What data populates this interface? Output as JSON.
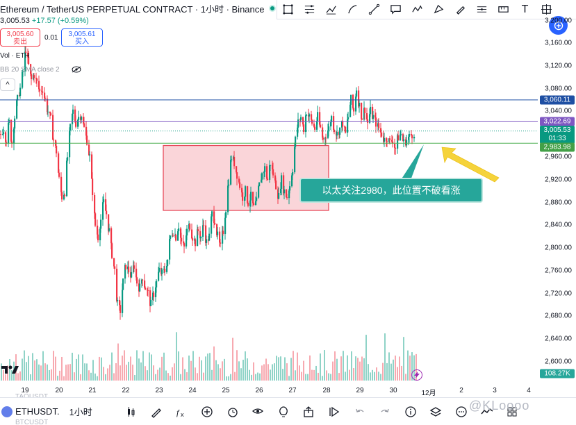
{
  "header": {
    "title": "Ethereum / TetherUS PERPETUAL CONTRACT · 1小时 · Binance",
    "last_price": "3,005.53",
    "change": "+17.57 (+0.59%)",
    "sell_price": "3,005.60",
    "sell_label": "卖出",
    "spread": "0.01",
    "buy_price": "3,005.61",
    "buy_label": "买入",
    "vol_label": "Vol · ETH",
    "bb_label": "BB 20 SMA close 2",
    "collapse": "^"
  },
  "toolbar": {
    "icons": [
      "rectangle-tool-icon",
      "fib-tool-icon",
      "path-tool-icon",
      "brush-icon",
      "trendline-icon",
      "callout-icon",
      "pattern-icon",
      "projection-icon",
      "pen-icon",
      "horizontal-line-icon",
      "ruler-icon",
      "text-icon",
      "crosshair-icon"
    ],
    "text_tool": "T"
  },
  "price_axis": {
    "ticks": [
      "3,160.00",
      "3,120.00",
      "3,080.00",
      "3,040.00",
      "3,000.00",
      "2,960.00",
      "2,920.00",
      "2,880.00",
      "2,840.00",
      "2,800.00",
      "2,760.00",
      "2,720.00",
      "2,680.00",
      "2,640.00",
      "2,600.00"
    ],
    "top_partial": "3,200.00",
    "tag_blue": "3,060.11",
    "tag_purple": "3,022.69",
    "tag_last": "3,005.53",
    "tag_countdown": "01:33",
    "tag_green": "2,983.98",
    "tag_volume": "108.27K"
  },
  "time_axis": {
    "labels": [
      "19",
      "20",
      "21",
      "22",
      "23",
      "24",
      "25",
      "26",
      "27",
      "28",
      "29",
      "30",
      "12月",
      "2",
      "3",
      "4"
    ]
  },
  "annotation": {
    "text": "以太关注2980，此位置不破看涨"
  },
  "colors": {
    "up": "#089981",
    "down": "#f23645",
    "zone_fill": "#f8c7cc",
    "zone_border": "#e84a5a",
    "line_blue": "#1e4fa3",
    "line_purple": "#7e57c2",
    "line_green": "#4caf50",
    "callout": "#26a69a",
    "arrow": "#f5d33b"
  },
  "bottom": {
    "symbol": "ETHUSDT.",
    "interval": "1小时",
    "ghost_top": "TAOUSDT",
    "ghost_bottom": "BTCUSDT",
    "icons": [
      "candles-icon",
      "draw-icon",
      "fx-icon",
      "add-icon",
      "alert-icon",
      "compare-icon",
      "idea-icon",
      "share-icon",
      "replay-icon",
      "undo-icon",
      "redo-icon",
      "info-icon",
      "layers-icon",
      "more-icon",
      "trend-icon",
      "grid-icon"
    ],
    "watermark": "@KLoooo"
  },
  "chart_data": {
    "type": "candlestick",
    "price_range": [
      2580,
      3210
    ],
    "close_path": [
      [
        0,
        3000
      ],
      [
        4,
        3010
      ],
      [
        8,
        2990
      ],
      [
        12,
        3020
      ],
      [
        16,
        2985
      ],
      [
        20,
        3030
      ],
      [
        24,
        3060
      ],
      [
        28,
        3080
      ],
      [
        32,
        3110
      ],
      [
        36,
        3150
      ],
      [
        40,
        3120
      ],
      [
        44,
        3095
      ],
      [
        48,
        3105
      ],
      [
        52,
        3090
      ],
      [
        56,
        3075
      ],
      [
        60,
        3080
      ],
      [
        64,
        3060
      ],
      [
        68,
        3040
      ],
      [
        72,
        3025
      ],
      [
        76,
        2990
      ],
      [
        80,
        2970
      ],
      [
        84,
        2920
      ],
      [
        88,
        2890
      ],
      [
        92,
        2900
      ],
      [
        96,
        2960
      ],
      [
        100,
        3010
      ],
      [
        104,
        3040
      ],
      [
        108,
        3020
      ],
      [
        112,
        3030
      ],
      [
        116,
        3035
      ],
      [
        120,
        3010
      ],
      [
        124,
        2990
      ],
      [
        128,
        2960
      ],
      [
        132,
        2900
      ],
      [
        136,
        2840
      ],
      [
        140,
        2820
      ],
      [
        144,
        2850
      ],
      [
        148,
        2880
      ],
      [
        152,
        2860
      ],
      [
        156,
        2830
      ],
      [
        160,
        2790
      ],
      [
        164,
        2760
      ],
      [
        168,
        2700
      ],
      [
        172,
        2690
      ],
      [
        176,
        2740
      ],
      [
        180,
        2770
      ],
      [
        184,
        2760
      ],
      [
        188,
        2750
      ],
      [
        192,
        2770
      ],
      [
        196,
        2740
      ],
      [
        200,
        2730
      ],
      [
        204,
        2750
      ],
      [
        208,
        2730
      ],
      [
        212,
        2720
      ],
      [
        216,
        2700
      ],
      [
        220,
        2720
      ],
      [
        224,
        2740
      ],
      [
        228,
        2760
      ],
      [
        232,
        2755
      ],
      [
        236,
        2760
      ],
      [
        240,
        2780
      ],
      [
        244,
        2820
      ],
      [
        248,
        2830
      ],
      [
        252,
        2820
      ],
      [
        256,
        2840
      ],
      [
        260,
        2810
      ],
      [
        264,
        2800
      ],
      [
        268,
        2830
      ],
      [
        272,
        2840
      ],
      [
        276,
        2820
      ],
      [
        280,
        2810
      ],
      [
        284,
        2830
      ],
      [
        288,
        2820
      ],
      [
        292,
        2840
      ],
      [
        296,
        2810
      ],
      [
        300,
        2820
      ],
      [
        304,
        2860
      ],
      [
        308,
        2850
      ],
      [
        312,
        2820
      ],
      [
        316,
        2800
      ],
      [
        320,
        2830
      ],
      [
        324,
        2870
      ],
      [
        328,
        2920
      ],
      [
        332,
        2960
      ],
      [
        336,
        2950
      ],
      [
        340,
        2930
      ],
      [
        344,
        2910
      ],
      [
        348,
        2890
      ],
      [
        352,
        2900
      ],
      [
        356,
        2880
      ],
      [
        360,
        2890
      ],
      [
        364,
        2870
      ],
      [
        368,
        2880
      ],
      [
        372,
        2910
      ],
      [
        376,
        2930
      ],
      [
        380,
        2940
      ],
      [
        384,
        2920
      ],
      [
        388,
        2950
      ],
      [
        392,
        2930
      ],
      [
        396,
        2910
      ],
      [
        400,
        2890
      ],
      [
        404,
        2920
      ],
      [
        408,
        2900
      ],
      [
        412,
        2890
      ],
      [
        416,
        2910
      ],
      [
        420,
        2940
      ],
      [
        424,
        2990
      ],
      [
        428,
        3020
      ],
      [
        432,
        3030
      ],
      [
        436,
        3010
      ],
      [
        440,
        3040
      ],
      [
        444,
        3030
      ],
      [
        448,
        3020
      ],
      [
        452,
        3010
      ],
      [
        456,
        3030
      ],
      [
        460,
        3010
      ],
      [
        464,
        2990
      ],
      [
        468,
        3000
      ],
      [
        472,
        3010
      ],
      [
        476,
        3030
      ],
      [
        480,
        3010
      ],
      [
        484,
        3000
      ],
      [
        488,
        3010
      ],
      [
        492,
        3020
      ],
      [
        496,
        3000
      ],
      [
        500,
        3030
      ],
      [
        504,
        3060
      ],
      [
        508,
        3040
      ],
      [
        512,
        3080
      ],
      [
        516,
        3050
      ],
      [
        520,
        3030
      ],
      [
        524,
        3045
      ],
      [
        528,
        3020
      ],
      [
        532,
        3040
      ],
      [
        536,
        3030
      ],
      [
        540,
        3020
      ],
      [
        544,
        3010
      ],
      [
        548,
        3000
      ],
      [
        552,
        2990
      ],
      [
        556,
        2995
      ],
      [
        560,
        2985
      ],
      [
        564,
        2990
      ],
      [
        568,
        2975
      ],
      [
        572,
        2995
      ],
      [
        576,
        3000
      ],
      [
        580,
        2985
      ],
      [
        584,
        2990
      ],
      [
        588,
        2995
      ],
      [
        592,
        3000
      ],
      [
        596,
        3005
      ]
    ],
    "lines": {
      "blue": 3060.11,
      "purple": 3022.69,
      "green": 2983.98
    },
    "zone": {
      "top": 2980,
      "bottom": 2866
    }
  }
}
